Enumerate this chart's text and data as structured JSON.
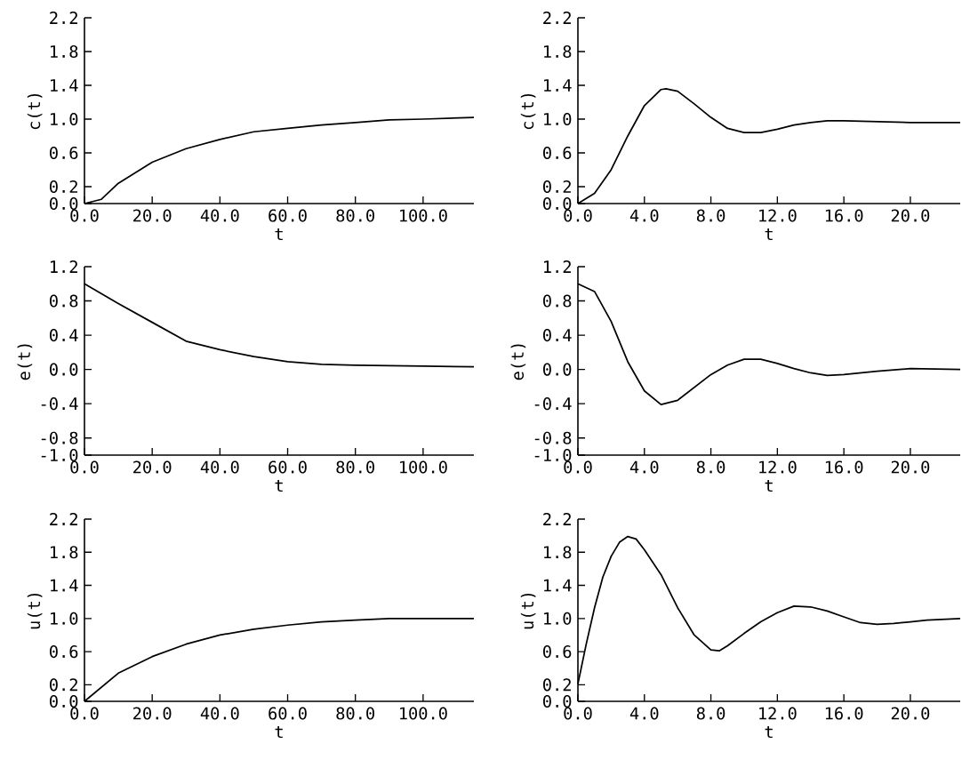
{
  "chart_data": [
    {
      "type": "line",
      "xlabel": "t",
      "ylabel": "c(t)",
      "x": [
        0,
        5,
        10,
        20,
        30,
        40,
        50,
        60,
        70,
        80,
        90,
        100,
        115
      ],
      "series": [
        {
          "color": "#000000",
          "values": [
            0,
            0.05,
            0.24,
            0.49,
            0.65,
            0.76,
            0.85,
            0.89,
            0.93,
            0.96,
            0.99,
            1.0,
            1.02
          ]
        }
      ],
      "xlim": [
        0,
        115
      ],
      "ylim": [
        0,
        2.2
      ],
      "xticks": [
        {
          "value": 0,
          "label": "0.0"
        },
        {
          "value": 20,
          "label": "20.0"
        },
        {
          "value": 40,
          "label": "40.0"
        },
        {
          "value": 60,
          "label": "60.0"
        },
        {
          "value": 80,
          "label": "80.0"
        },
        {
          "value": 100,
          "label": "100.0"
        }
      ],
      "yticks": [
        {
          "value": 0,
          "label": "0.0"
        },
        {
          "value": 0.2,
          "label": "0.2"
        },
        {
          "value": 0.6,
          "label": "0.6"
        },
        {
          "value": 1.0,
          "label": "1.0"
        },
        {
          "value": 1.4,
          "label": "1.4"
        },
        {
          "value": 1.8,
          "label": "1.8"
        },
        {
          "value": 2.2,
          "label": "2.2"
        }
      ]
    },
    {
      "type": "line",
      "xlabel": "t",
      "ylabel": "c(t)",
      "x": [
        0,
        1,
        2,
        3,
        4,
        5,
        5.3,
        6,
        7,
        8,
        9,
        10,
        11,
        12,
        13,
        14,
        15,
        16,
        18,
        20,
        23
      ],
      "series": [
        {
          "color": "#000000",
          "values": [
            0,
            0.12,
            0.4,
            0.8,
            1.16,
            1.35,
            1.36,
            1.33,
            1.18,
            1.02,
            0.89,
            0.84,
            0.84,
            0.88,
            0.93,
            0.96,
            0.98,
            0.98,
            0.97,
            0.96,
            0.96
          ]
        }
      ],
      "xlim": [
        0,
        23
      ],
      "ylim": [
        0,
        2.2
      ],
      "xticks": [
        {
          "value": 0,
          "label": "0.0"
        },
        {
          "value": 4,
          "label": "4.0"
        },
        {
          "value": 8,
          "label": "8.0"
        },
        {
          "value": 12,
          "label": "12.0"
        },
        {
          "value": 16,
          "label": "16.0"
        },
        {
          "value": 20,
          "label": "20.0"
        }
      ],
      "yticks": [
        {
          "value": 0,
          "label": "0.0"
        },
        {
          "value": 0.2,
          "label": "0.2"
        },
        {
          "value": 0.6,
          "label": "0.6"
        },
        {
          "value": 1.0,
          "label": "1.0"
        },
        {
          "value": 1.4,
          "label": "1.4"
        },
        {
          "value": 1.8,
          "label": "1.8"
        },
        {
          "value": 2.2,
          "label": "2.2"
        }
      ]
    },
    {
      "type": "line",
      "xlabel": "t",
      "ylabel": "e(t)",
      "x": [
        0,
        10,
        20,
        30,
        40,
        50,
        60,
        70,
        80,
        100,
        115
      ],
      "series": [
        {
          "color": "#000000",
          "values": [
            1.0,
            0.77,
            0.55,
            0.33,
            0.23,
            0.15,
            0.09,
            0.06,
            0.05,
            0.04,
            0.03
          ]
        }
      ],
      "xlim": [
        0,
        115
      ],
      "ylim": [
        -1.0,
        1.2
      ],
      "xticks": [
        {
          "value": 0,
          "label": "0.0"
        },
        {
          "value": 20,
          "label": "20.0"
        },
        {
          "value": 40,
          "label": "40.0"
        },
        {
          "value": 60,
          "label": "60.0"
        },
        {
          "value": 80,
          "label": "80.0"
        },
        {
          "value": 100,
          "label": "100.0"
        }
      ],
      "yticks": [
        {
          "value": -1.0,
          "label": "-1.0"
        },
        {
          "value": -0.8,
          "label": "-0.8"
        },
        {
          "value": -0.4,
          "label": "-0.4"
        },
        {
          "value": 0,
          "label": "0.0"
        },
        {
          "value": 0.4,
          "label": "0.4"
        },
        {
          "value": 0.8,
          "label": "0.8"
        },
        {
          "value": 1.2,
          "label": "1.2"
        }
      ]
    },
    {
      "type": "line",
      "xlabel": "t",
      "ylabel": "e(t)",
      "x": [
        0,
        1,
        2,
        3,
        4,
        5,
        6,
        7,
        8,
        9,
        10,
        11,
        12,
        13,
        14,
        15,
        16,
        18,
        20,
        23
      ],
      "series": [
        {
          "color": "#000000",
          "values": [
            1.0,
            0.91,
            0.56,
            0.09,
            -0.25,
            -0.41,
            -0.36,
            -0.21,
            -0.06,
            0.05,
            0.12,
            0.12,
            0.07,
            0.01,
            -0.04,
            -0.07,
            -0.06,
            -0.02,
            0.01,
            0.0
          ]
        }
      ],
      "xlim": [
        0,
        23
      ],
      "ylim": [
        -1.0,
        1.2
      ],
      "xticks": [
        {
          "value": 0,
          "label": "0.0"
        },
        {
          "value": 4,
          "label": "4.0"
        },
        {
          "value": 8,
          "label": "8.0"
        },
        {
          "value": 12,
          "label": "12.0"
        },
        {
          "value": 16,
          "label": "16.0"
        },
        {
          "value": 20,
          "label": "20.0"
        }
      ],
      "yticks": [
        {
          "value": -1.0,
          "label": "-1.0"
        },
        {
          "value": -0.8,
          "label": "-0.8"
        },
        {
          "value": -0.4,
          "label": "-0.4"
        },
        {
          "value": 0,
          "label": "0.0"
        },
        {
          "value": 0.4,
          "label": "0.4"
        },
        {
          "value": 0.8,
          "label": "0.8"
        },
        {
          "value": 1.2,
          "label": "1.2"
        }
      ]
    },
    {
      "type": "line",
      "xlabel": "t",
      "ylabel": "u(t)",
      "x": [
        0,
        10,
        20,
        30,
        40,
        50,
        60,
        70,
        80,
        90,
        100,
        115
      ],
      "series": [
        {
          "color": "#000000",
          "values": [
            0,
            0.34,
            0.54,
            0.69,
            0.8,
            0.87,
            0.92,
            0.96,
            0.98,
            1.0,
            1.0,
            1.0
          ]
        }
      ],
      "xlim": [
        0,
        115
      ],
      "ylim": [
        0,
        2.2
      ],
      "xticks": [
        {
          "value": 0,
          "label": "0.0"
        },
        {
          "value": 20,
          "label": "20.0"
        },
        {
          "value": 40,
          "label": "40.0"
        },
        {
          "value": 60,
          "label": "60.0"
        },
        {
          "value": 80,
          "label": "80.0"
        },
        {
          "value": 100,
          "label": "100.0"
        }
      ],
      "yticks": [
        {
          "value": 0,
          "label": "0.0"
        },
        {
          "value": 0.2,
          "label": "0.2"
        },
        {
          "value": 0.6,
          "label": "0.6"
        },
        {
          "value": 1.0,
          "label": "1.0"
        },
        {
          "value": 1.4,
          "label": "1.4"
        },
        {
          "value": 1.8,
          "label": "1.8"
        },
        {
          "value": 2.2,
          "label": "2.2"
        }
      ]
    },
    {
      "type": "line",
      "xlabel": "t",
      "ylabel": "u(t)",
      "x": [
        0,
        0.5,
        1,
        1.5,
        2,
        2.5,
        3,
        3.5,
        4,
        5,
        6,
        7,
        8,
        8.5,
        9,
        10,
        11,
        12,
        13,
        14,
        15,
        16,
        17,
        18,
        19,
        20,
        21,
        23
      ],
      "series": [
        {
          "color": "#000000",
          "values": [
            0.21,
            0.69,
            1.13,
            1.5,
            1.75,
            1.92,
            1.99,
            1.96,
            1.83,
            1.53,
            1.13,
            0.8,
            0.62,
            0.61,
            0.67,
            0.82,
            0.96,
            1.07,
            1.15,
            1.14,
            1.09,
            1.02,
            0.95,
            0.93,
            0.94,
            0.96,
            0.98,
            1.0
          ]
        }
      ],
      "xlim": [
        0,
        23
      ],
      "ylim": [
        0,
        2.2
      ],
      "xticks": [
        {
          "value": 0,
          "label": "0.0"
        },
        {
          "value": 4,
          "label": "4.0"
        },
        {
          "value": 8,
          "label": "8.0"
        },
        {
          "value": 12,
          "label": "12.0"
        },
        {
          "value": 16,
          "label": "16.0"
        },
        {
          "value": 20,
          "label": "20.0"
        }
      ],
      "yticks": [
        {
          "value": 0,
          "label": "0.0"
        },
        {
          "value": 0.2,
          "label": "0.2"
        },
        {
          "value": 0.6,
          "label": "0.6"
        },
        {
          "value": 1.0,
          "label": "1.0"
        },
        {
          "value": 1.4,
          "label": "1.4"
        },
        {
          "value": 1.8,
          "label": "1.8"
        },
        {
          "value": 2.2,
          "label": "2.2"
        }
      ]
    }
  ]
}
